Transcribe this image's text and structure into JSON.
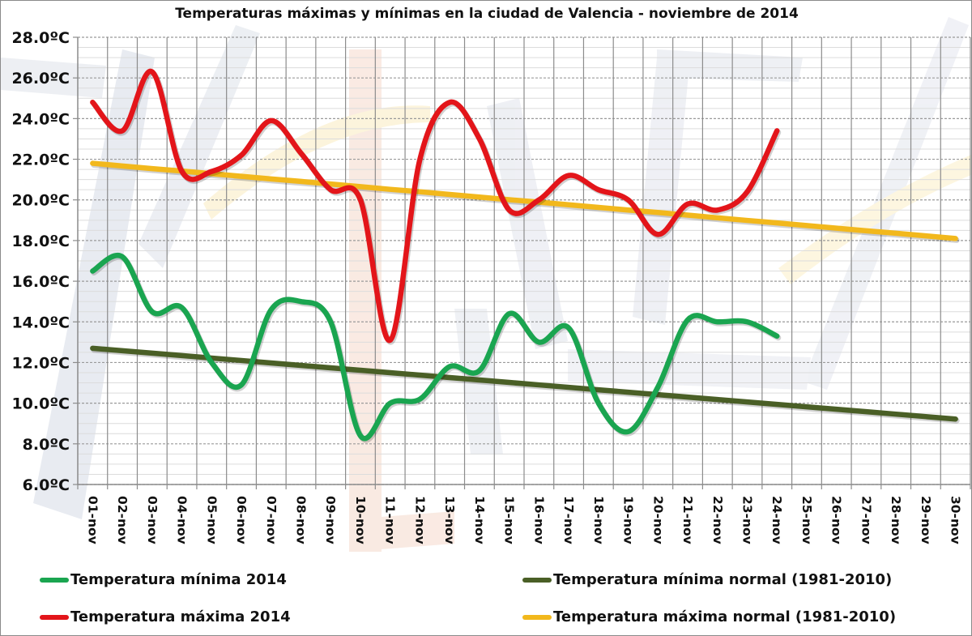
{
  "chart_data": {
    "type": "line",
    "title": "Temperaturas máximas y mínimas en la ciudad de Valencia - noviembre de 2014",
    "xlabel": "",
    "ylabel": "",
    "ylim": [
      6,
      28
    ],
    "yticks": [
      6,
      8,
      10,
      12,
      14,
      16,
      18,
      20,
      22,
      24,
      26,
      28
    ],
    "ytick_labels": [
      "6.0ºC",
      "8.0ºC",
      "10.0ºC",
      "12.0ºC",
      "14.0ºC",
      "16.0ºC",
      "18.0ºC",
      "20.0ºC",
      "22.0ºC",
      "24.0ºC",
      "26.0ºC",
      "28.0ºC"
    ],
    "categories": [
      "01-nov",
      "02-nov",
      "03-nov",
      "04-nov",
      "05-nov",
      "06-nov",
      "07-nov",
      "08-nov",
      "09-nov",
      "10-nov",
      "11-nov",
      "12-nov",
      "13-nov",
      "14-nov",
      "15-nov",
      "16-nov",
      "17-nov",
      "18-nov",
      "19-nov",
      "20-nov",
      "21-nov",
      "22-nov",
      "23-nov",
      "24-nov",
      "25-nov",
      "26-nov",
      "27-nov",
      "28-nov",
      "29-nov",
      "30-nov"
    ],
    "grid": true,
    "legend_position": "bottom",
    "series": [
      {
        "name": "Temperatura mínima 2014",
        "color": "#1aa550",
        "smooth": true,
        "values": [
          16.5,
          17.2,
          14.5,
          14.7,
          12.0,
          10.9,
          14.6,
          15.0,
          14.0,
          8.4,
          10.0,
          10.2,
          11.8,
          11.6,
          14.4,
          13.0,
          13.7,
          10.0,
          8.6,
          10.8,
          14.1,
          14.0,
          14.0,
          13.3,
          null,
          null,
          null,
          null,
          null,
          null
        ]
      },
      {
        "name": "Temperatura mínima normal (1981-2010)",
        "color": "#4a5f26",
        "smooth": false,
        "values": [
          12.7,
          12.58,
          12.46,
          12.34,
          12.22,
          12.1,
          11.98,
          11.86,
          11.74,
          11.62,
          11.5,
          11.38,
          11.26,
          11.14,
          11.02,
          10.9,
          10.78,
          10.66,
          10.54,
          10.42,
          10.3,
          10.18,
          10.06,
          9.94,
          9.82,
          9.7,
          9.58,
          9.46,
          9.34,
          9.22
        ]
      },
      {
        "name": "Temperatura máxima 2014",
        "color": "#e3151a",
        "smooth": true,
        "values": [
          24.8,
          23.4,
          26.3,
          21.4,
          21.4,
          22.2,
          23.9,
          22.3,
          20.5,
          20.0,
          13.1,
          22.0,
          24.8,
          23.0,
          19.5,
          20.0,
          21.2,
          20.5,
          20.0,
          18.3,
          19.8,
          19.5,
          20.4,
          23.4,
          null,
          null,
          null,
          null,
          null,
          null
        ]
      },
      {
        "name": "Temperatura máxima normal (1981-2010)",
        "color": "#f2b81c",
        "smooth": false,
        "values": [
          21.8,
          21.67,
          21.54,
          21.42,
          21.29,
          21.16,
          21.03,
          20.91,
          20.78,
          20.65,
          20.52,
          20.4,
          20.27,
          20.14,
          20.01,
          19.89,
          19.76,
          19.63,
          19.5,
          19.38,
          19.25,
          19.12,
          18.99,
          18.87,
          18.74,
          18.61,
          18.48,
          18.36,
          18.23,
          18.1
        ]
      }
    ]
  },
  "legend": [
    {
      "label": "Temperatura mínima 2014",
      "color": "#1aa550"
    },
    {
      "label": "Temperatura mínima normal (1981-2010)",
      "color": "#4a5f26"
    },
    {
      "label": "Temperatura máxima 2014",
      "color": "#e3151a"
    },
    {
      "label": "Temperatura máxima normal (1981-2010)",
      "color": "#f2b81c"
    }
  ]
}
